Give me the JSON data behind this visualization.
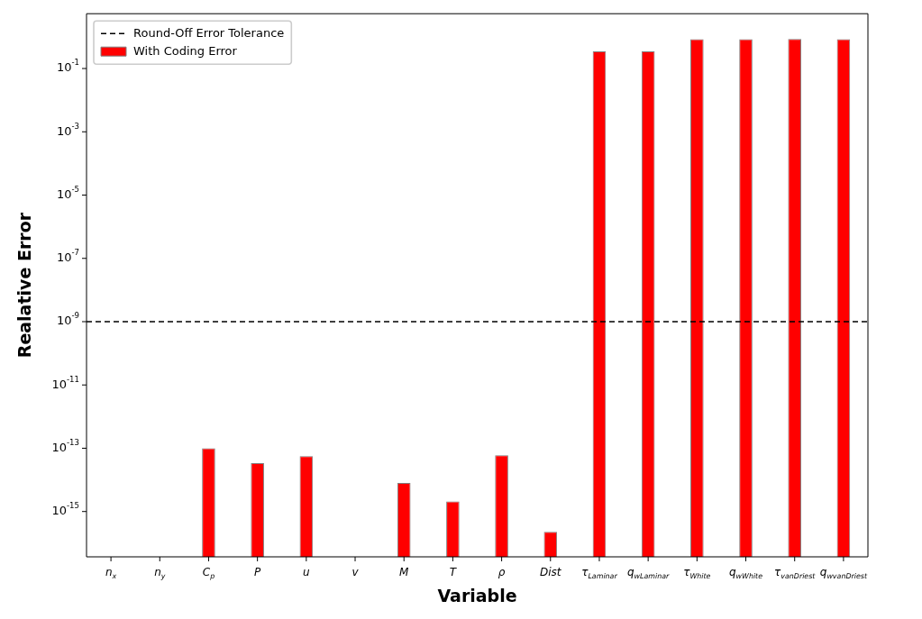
{
  "chart_data": {
    "type": "bar",
    "xlabel": "Variable",
    "ylabel": "Realative Error",
    "categories": [
      "n$_{x}$",
      "n$_{y}$",
      "C$_{p}$",
      "P",
      "u",
      "v",
      "M",
      "T",
      "ρ",
      "Dist",
      "τ$_{Laminar}$",
      "q$_{w}$$_{Laminar}$",
      "τ$_{White}$",
      "q$_{w}$$_{White}$",
      "τ$_{vanDriest}$",
      "q$_{w}$$_{vanDriest}$"
    ],
    "series": [
      {
        "name": "With Coding Error",
        "color": "#ff0000",
        "values": [
          null,
          null,
          1e-13,
          3.4e-14,
          5.6e-14,
          null,
          8e-15,
          2.1e-15,
          6e-14,
          2.3e-16,
          0.35,
          0.35,
          0.85,
          0.85,
          0.86,
          0.85
        ]
      }
    ],
    "log": true,
    "ylim": [
      3.7e-17,
      5.4
    ],
    "yticks": [
      {
        "value": 0.1,
        "label": "10$^{-1}$"
      },
      {
        "value": 0.001,
        "label": "10$^{-3}$"
      },
      {
        "value": 1e-05,
        "label": "10$^{-5}$"
      },
      {
        "value": 1e-07,
        "label": "10$^{-7}$"
      },
      {
        "value": 1e-09,
        "label": "10$^{-9}$"
      },
      {
        "value": 1e-11,
        "label": "10$^{-11}$"
      },
      {
        "value": 1e-13,
        "label": "10$^{-13}$"
      },
      {
        "value": 1e-15,
        "label": "10$^{-15}$"
      }
    ],
    "ref_lines": [
      {
        "axis": "y",
        "value": 1e-09,
        "label": "Round-Off Error Tolerance",
        "color": "#000000",
        "line_style": "dashed"
      }
    ],
    "legend": "top left",
    "grid": false
  }
}
